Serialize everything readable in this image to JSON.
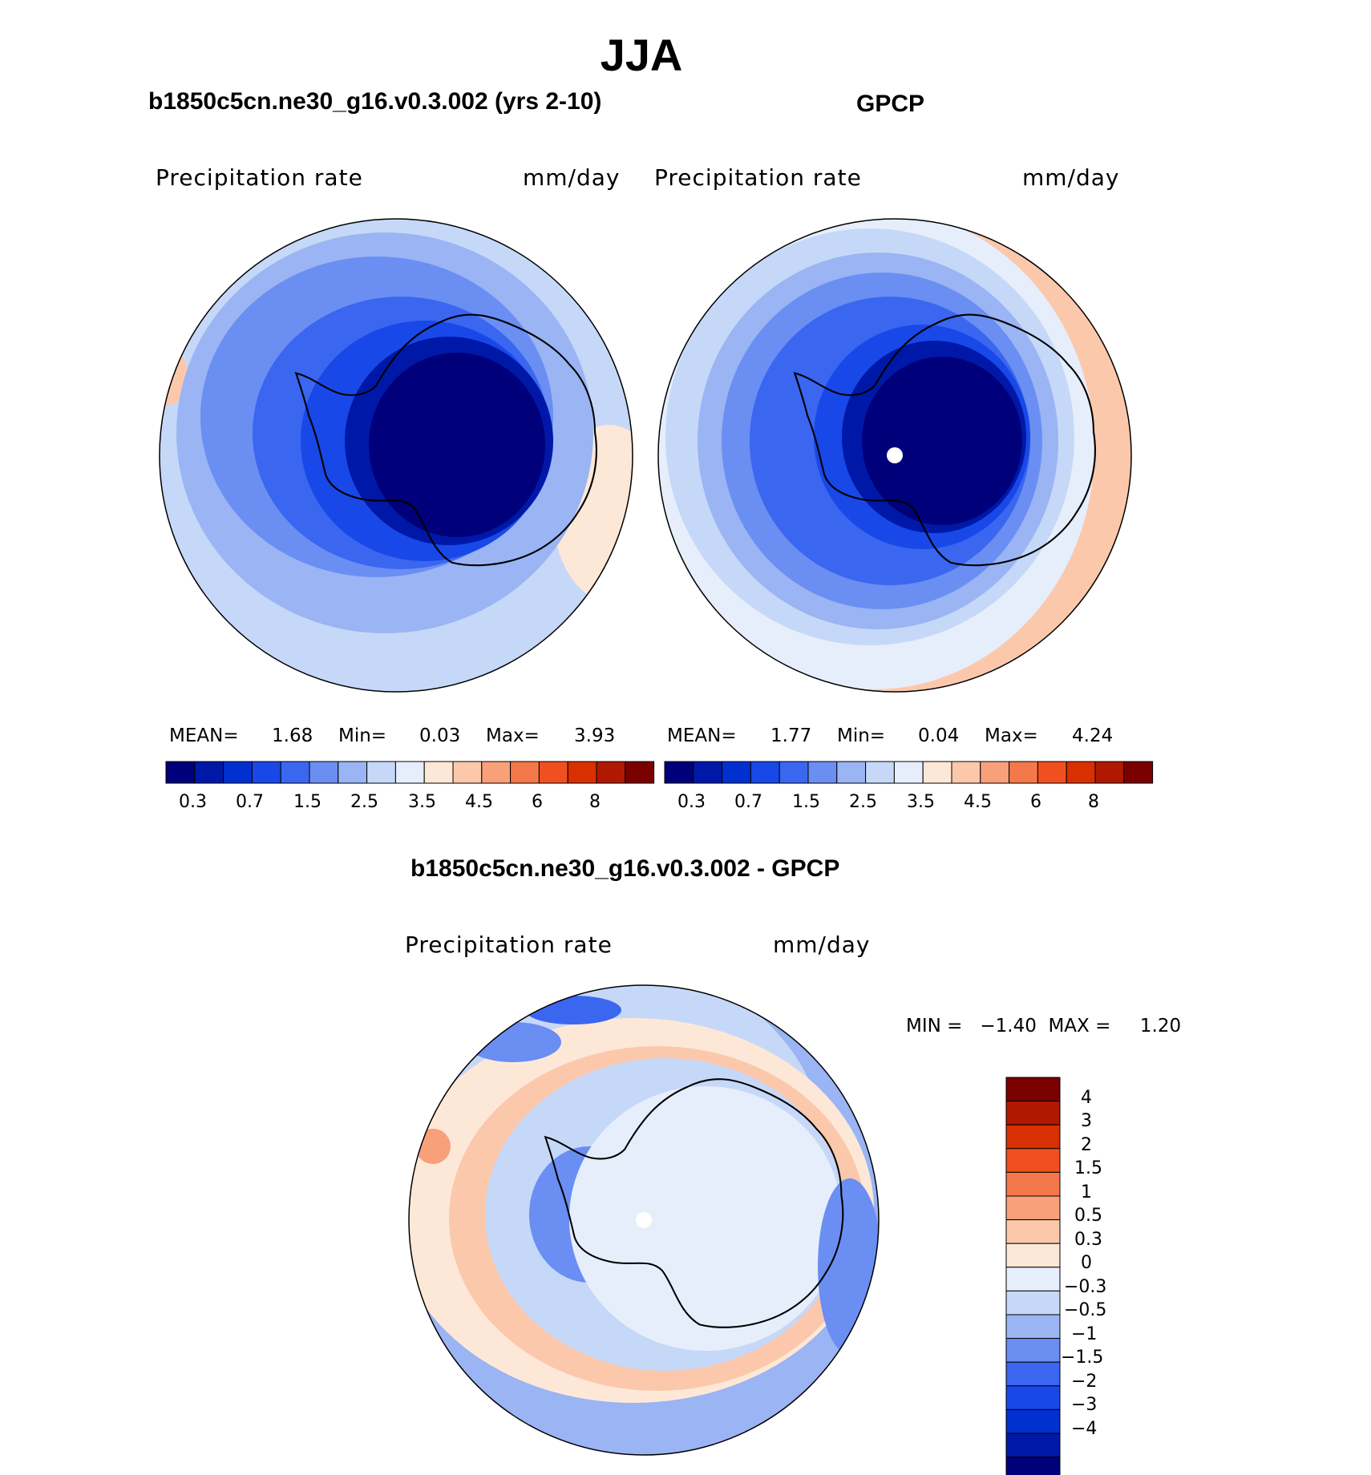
{
  "page": {
    "title": "JJA"
  },
  "panels": [
    {
      "title": "b1850c5cn.ne30_g16.v0.3.002 (yrs 2-10)",
      "left_label": "Precipitation  rate",
      "right_label": "mm/day",
      "stats": {
        "mean_label": "MEAN=",
        "mean": "1.68",
        "min_label": "Min=",
        "min": "0.03",
        "max_label": "Max=",
        "max": "3.93"
      }
    },
    {
      "title": "GPCP",
      "left_label": "Precipitation  rate",
      "right_label": "mm/day",
      "stats": {
        "mean_label": "MEAN=",
        "mean": "1.77",
        "min_label": "Min=",
        "min": "0.04",
        "max_label": "Max=",
        "max": "4.24"
      }
    }
  ],
  "diff_panel": {
    "title": "b1850c5cn.ne30_g16.v0.3.002 - GPCP",
    "left_label": "Precipitation  rate",
    "right_label": "mm/day",
    "minmax_text": "MIN =   −1.40  MAX =     1.20"
  },
  "colorbar": {
    "colors": [
      "#00007a",
      "#0018a8",
      "#0030d0",
      "#1848e8",
      "#3a66f0",
      "#6a8ef2",
      "#9ab4f4",
      "#c6d8f8",
      "#e6eefc",
      "#fde8d8",
      "#fcc8ac",
      "#f8a07a",
      "#f4784a",
      "#f05020",
      "#d83000",
      "#b01800",
      "#7a0000"
    ],
    "tick_labels": [
      "0.3",
      "0.7",
      "1.5",
      "2.5",
      "3.5",
      "4.5",
      "6",
      "8"
    ]
  },
  "diff_colorbar": {
    "colors_top_to_bottom": [
      "#7a0000",
      "#b01800",
      "#d83000",
      "#f05020",
      "#f4784a",
      "#f8a07a",
      "#fcc8ac",
      "#fde8d8",
      "#e6eefc",
      "#c6d8f8",
      "#9ab4f4",
      "#6a8ef2",
      "#3a66f0",
      "#1848e8",
      "#0030d0",
      "#0018a8",
      "#00007a"
    ],
    "tick_labels_top_to_bottom": [
      "4",
      "3",
      "2",
      "1.5",
      "1",
      "0.5",
      "0.3",
      "0",
      "−0.3",
      "−0.5",
      "−1",
      "−1.5",
      "−2",
      "−3",
      "−4"
    ]
  }
}
